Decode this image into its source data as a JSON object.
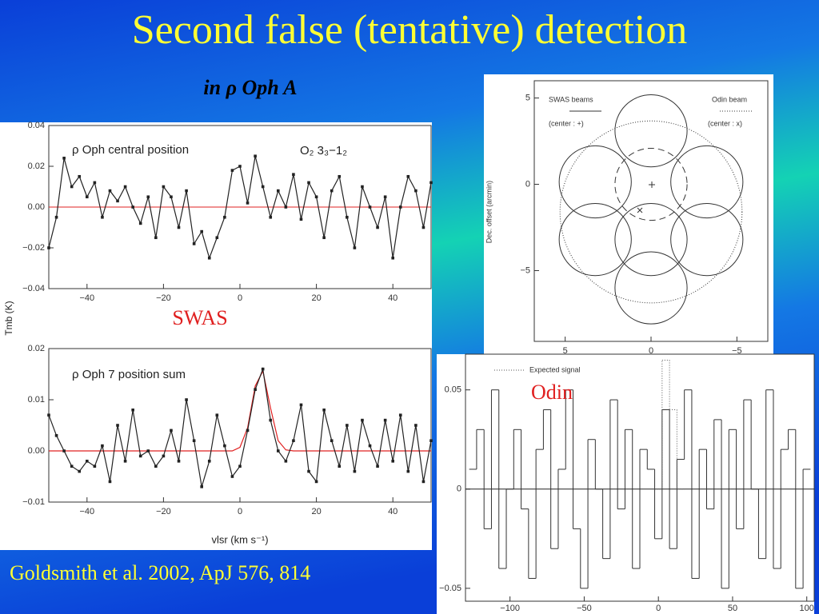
{
  "title": "Second false (tentative) detection",
  "subtitle": "in ρ Oph A",
  "labels": {
    "swas": "SWAS",
    "odin": "Odin"
  },
  "citation": "Goldsmith et al. 2002, ApJ 576, 814",
  "chart_data": [
    {
      "type": "line",
      "annotations": [
        "ρ Oph central position",
        "O₂ 3₃−1₂"
      ],
      "ylabel": "Tmb (K)",
      "x": [
        -50,
        -48,
        -46,
        -44,
        -42,
        -40,
        -38,
        -36,
        -34,
        -32,
        -30,
        -28,
        -26,
        -24,
        -22,
        -20,
        -18,
        -16,
        -14,
        -12,
        -10,
        -8,
        -6,
        -4,
        -2,
        0,
        2,
        4,
        6,
        8,
        10,
        12,
        14,
        16,
        18,
        20,
        22,
        24,
        26,
        28,
        30,
        32,
        34,
        36,
        38,
        40,
        42,
        44,
        46,
        48,
        50
      ],
      "series": [
        {
          "color": "#222222",
          "markers": true,
          "values": [
            -0.02,
            -0.005,
            0.024,
            0.01,
            0.015,
            0.005,
            0.012,
            -0.005,
            0.008,
            0.003,
            0.01,
            0.0,
            -0.008,
            0.005,
            -0.015,
            0.01,
            0.005,
            -0.01,
            0.008,
            -0.018,
            -0.012,
            -0.025,
            -0.015,
            -0.005,
            0.018,
            0.02,
            0.002,
            0.025,
            0.01,
            -0.005,
            0.008,
            0.0,
            0.016,
            -0.006,
            0.012,
            0.005,
            -0.015,
            0.008,
            0.015,
            -0.005,
            -0.02,
            0.01,
            0.0,
            -0.01,
            0.005,
            -0.025,
            0.0,
            0.015,
            0.008,
            -0.01,
            0.012
          ]
        }
      ],
      "reference_line": {
        "value": 0,
        "color": "#e02020"
      },
      "xlim": [
        -50,
        50
      ],
      "xticks": [
        {
          "value": -40,
          "label": "−40"
        },
        {
          "value": -20,
          "label": "−20"
        },
        0,
        20,
        40
      ],
      "ylim": [
        -0.04,
        0.04
      ],
      "yticks": [
        {
          "value": -0.04,
          "label": "−0.04"
        },
        {
          "value": -0.02,
          "label": "−0.02"
        },
        {
          "value": 0,
          "label": "0.00"
        },
        {
          "value": 0.02,
          "label": "0.02"
        },
        {
          "value": 0.04,
          "label": "0.04"
        }
      ]
    },
    {
      "type": "line",
      "annotations": [
        "ρ Oph 7 position sum"
      ],
      "xlabel": "vlsr (km s⁻¹)",
      "x": [
        -50,
        -48,
        -46,
        -44,
        -42,
        -40,
        -38,
        -36,
        -34,
        -32,
        -30,
        -28,
        -26,
        -24,
        -22,
        -20,
        -18,
        -16,
        -14,
        -12,
        -10,
        -8,
        -6,
        -4,
        -2,
        0,
        2,
        4,
        6,
        8,
        10,
        12,
        14,
        16,
        18,
        20,
        22,
        24,
        26,
        28,
        30,
        32,
        34,
        36,
        38,
        40,
        42,
        44,
        46,
        48,
        50
      ],
      "series": [
        {
          "color": "#e02020",
          "markers": false,
          "values": [
            0,
            0,
            0,
            0,
            0,
            0,
            0,
            0,
            0,
            0,
            0,
            0,
            0,
            0,
            0,
            0,
            0,
            0,
            0,
            0,
            0,
            0,
            0,
            0,
            0,
            0.0007,
            0.0045,
            0.0127,
            0.0156,
            0.0084,
            0.002,
            0.0002,
            0,
            0,
            0,
            0,
            0,
            0,
            0,
            0,
            0,
            0,
            0,
            0,
            0,
            0,
            0,
            0,
            0,
            0,
            0
          ]
        },
        {
          "color": "#222222",
          "markers": true,
          "values": [
            0.007,
            0.003,
            0.0,
            -0.003,
            -0.004,
            -0.002,
            -0.003,
            0.001,
            -0.006,
            0.005,
            -0.002,
            0.008,
            -0.001,
            0.0,
            -0.003,
            -0.001,
            0.004,
            -0.002,
            0.01,
            0.002,
            -0.007,
            -0.002,
            0.007,
            0.001,
            -0.005,
            -0.003,
            0.004,
            0.012,
            0.016,
            0.006,
            0.0,
            -0.002,
            0.002,
            0.009,
            -0.004,
            -0.006,
            0.008,
            0.002,
            -0.003,
            0.005,
            -0.004,
            0.006,
            0.001,
            -0.003,
            0.006,
            -0.002,
            0.007,
            -0.004,
            0.005,
            -0.006,
            0.002
          ]
        }
      ],
      "xlim": [
        -50,
        50
      ],
      "xticks": [
        {
          "value": -40,
          "label": "−40"
        },
        {
          "value": -20,
          "label": "−20"
        },
        0,
        20,
        40
      ],
      "ylim": [
        -0.01,
        0.02
      ],
      "yticks": [
        {
          "value": -0.01,
          "label": "−0.01"
        },
        {
          "value": 0,
          "label": "0.00"
        },
        {
          "value": 0.01,
          "label": "0.01"
        },
        {
          "value": 0.02,
          "label": "0.02"
        }
      ]
    },
    {
      "type": "beam-map",
      "ylabel": "Dec. offset (arcmin)",
      "legend": [
        {
          "name": "SWAS beams",
          "note": "(center : +)",
          "line_style": "solid"
        },
        {
          "name": "Odin beam",
          "note": "(center : x)",
          "line_style": "dotted"
        }
      ],
      "beams": [
        {
          "x": 0,
          "y": 3.1,
          "r": 2.1,
          "line_style": "solid"
        },
        {
          "x": 3.25,
          "y": 0.14,
          "r": 2.1,
          "line_style": "solid"
        },
        {
          "x": -3.25,
          "y": 0.14,
          "r": 2.1,
          "line_style": "solid"
        },
        {
          "x": 3.25,
          "y": -3.2,
          "r": 2.1,
          "line_style": "solid"
        },
        {
          "x": 0,
          "y": -3.2,
          "r": 2.1,
          "line_style": "solid"
        },
        {
          "x": -3.25,
          "y": -3.2,
          "r": 2.1,
          "line_style": "solid"
        },
        {
          "x": 0,
          "y": -6.0,
          "r": 2.1,
          "line_style": "solid"
        },
        {
          "x": 0,
          "y": 0,
          "r": 2.1,
          "line_style": "dashed"
        },
        {
          "x": 0,
          "y": -1.6,
          "r": 5.3,
          "line_style": "dotted"
        }
      ],
      "xlim": [
        6.8,
        -6.8
      ],
      "xticks": [
        5,
        0,
        {
          "value": -5,
          "label": "−5"
        }
      ],
      "ylim": [
        -9.1,
        6.0
      ],
      "yticks": [
        5,
        0,
        {
          "value": -5,
          "label": "−5"
        }
      ]
    },
    {
      "type": "step",
      "x": [
        -125,
        -120,
        -115,
        -110,
        -105,
        -100,
        -95,
        -90,
        -85,
        -80,
        -75,
        -70,
        -65,
        -60,
        -55,
        -50,
        -45,
        -40,
        -35,
        -30,
        -25,
        -20,
        -15,
        -10,
        -5,
        0,
        5,
        10,
        15,
        20,
        25,
        30,
        35,
        40,
        45,
        50,
        55,
        60,
        65,
        70,
        75,
        80,
        85,
        90,
        95,
        100
      ],
      "series": [
        {
          "color": "#333333",
          "line_style": "solid",
          "values": [
            0.01,
            0.03,
            -0.02,
            0.05,
            -0.04,
            0.0,
            0.03,
            -0.01,
            -0.045,
            0.02,
            0.04,
            -0.03,
            0.01,
            0.05,
            -0.02,
            -0.05,
            0.025,
            0.0,
            -0.035,
            0.045,
            -0.01,
            0.03,
            -0.04,
            0.02,
            0.01,
            -0.025,
            0.04,
            -0.03,
            0.015,
            0.05,
            -0.045,
            0.02,
            -0.01,
            0.035,
            -0.05,
            0.03,
            -0.02,
            0.045,
            0.0,
            -0.035,
            0.05,
            -0.04,
            0.02,
            0.03,
            -0.05,
            0.01
          ]
        },
        {
          "name": "Expected signal",
          "color": "#555555",
          "line_style": "dotted",
          "values": [
            null,
            null,
            null,
            null,
            null,
            null,
            null,
            null,
            null,
            null,
            null,
            null,
            null,
            null,
            null,
            null,
            null,
            null,
            null,
            null,
            null,
            null,
            null,
            null,
            null,
            0,
            0.065,
            0.04,
            0,
            null,
            null,
            null,
            null,
            null,
            null,
            null,
            null,
            null,
            null,
            null,
            null,
            null,
            null,
            null,
            null,
            null
          ]
        }
      ],
      "reference_line": {
        "value": 0,
        "color": "#222222"
      },
      "xlim": [
        -130,
        105
      ],
      "xticks": [
        {
          "value": -100,
          "label": "−100"
        },
        {
          "value": -50,
          "label": "−50"
        },
        0,
        50,
        100
      ],
      "ylim": [
        -0.0565,
        0.068
      ],
      "yticks": [
        {
          "value": -0.05,
          "label": "−0.05"
        },
        0,
        0.05
      ]
    }
  ]
}
